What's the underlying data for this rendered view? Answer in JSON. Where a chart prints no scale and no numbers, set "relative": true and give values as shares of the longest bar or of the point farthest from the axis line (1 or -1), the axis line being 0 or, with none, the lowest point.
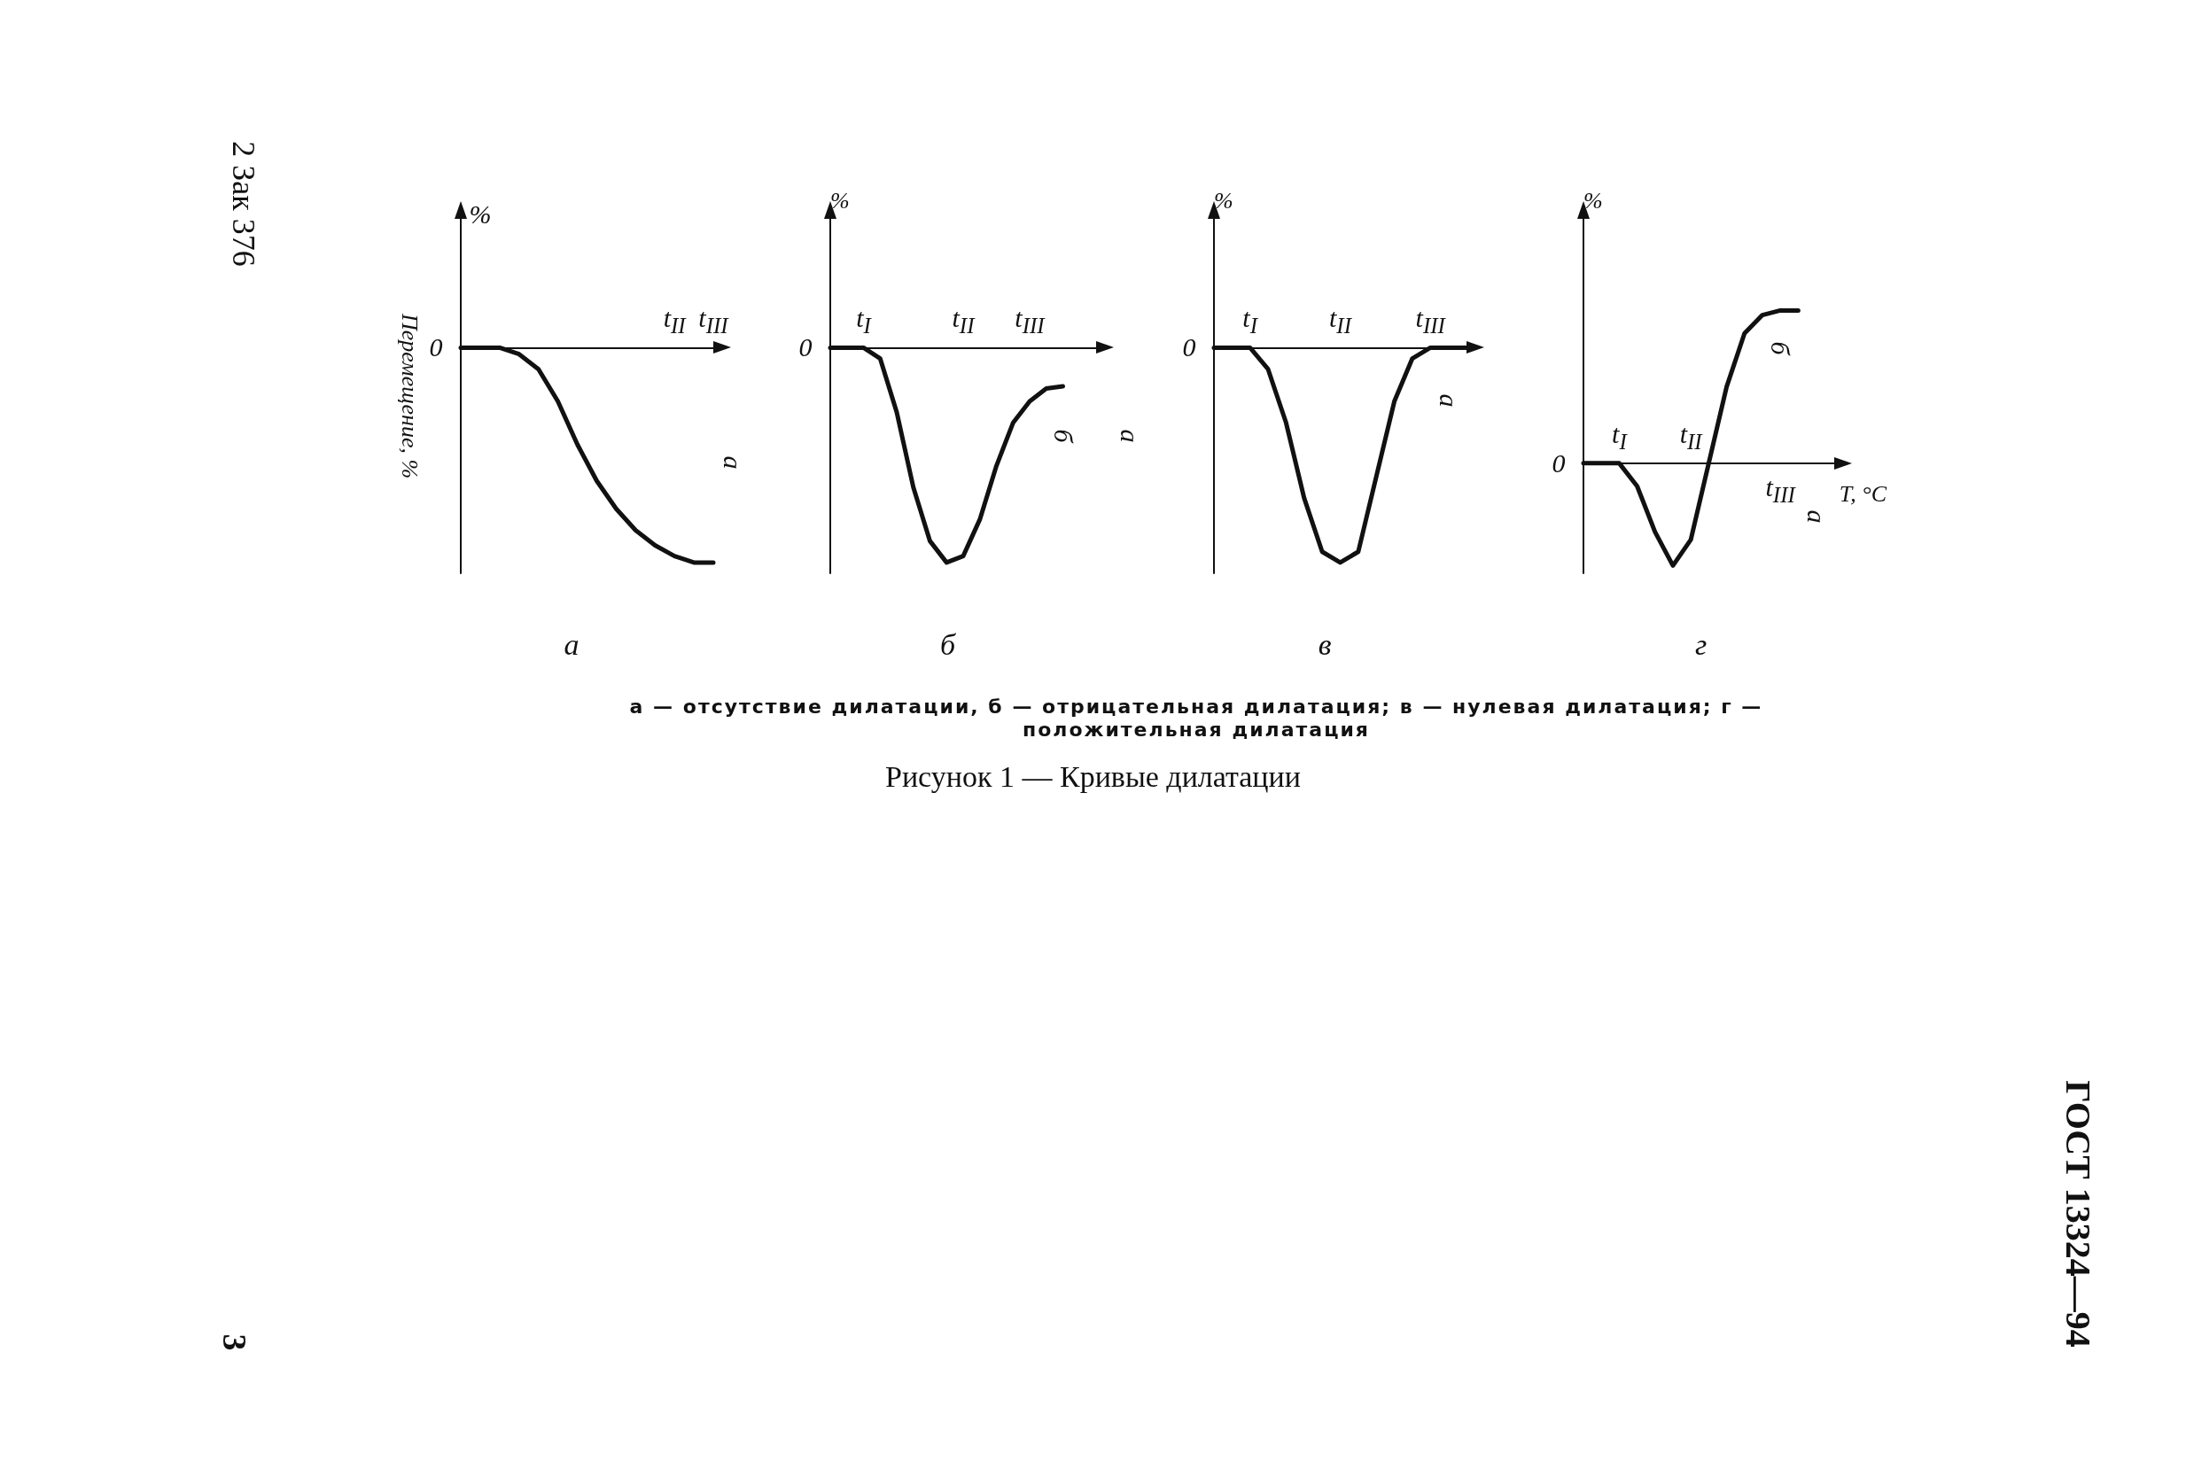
{
  "chart_data": [
    {
      "type": "line",
      "title": "а",
      "ylabel": "Перемещение, %",
      "relative": true,
      "marker": "none",
      "line_style": "solid",
      "color": "#111111",
      "categories": [
        null,
        null,
        null,
        null,
        null,
        null,
        null,
        null,
        null,
        null,
        null,
        null,
        null,
        null
      ],
      "values": [
        0,
        0,
        0,
        -0.03,
        -0.1,
        -0.25,
        -0.45,
        -0.62,
        -0.75,
        -0.85,
        -0.92,
        -0.97,
        -1,
        -1
      ],
      "annotations": [
        "%",
        "0",
        "t$_{II}$",
        "t$_{III}$",
        "а"
      ]
    },
    {
      "type": "line",
      "title": "б",
      "ylabel": "%",
      "relative": true,
      "marker": "none",
      "line_style": "solid",
      "color": "#111111",
      "categories": [
        null,
        null,
        null,
        null,
        null,
        null,
        null,
        null,
        null,
        null,
        null,
        null,
        null,
        null,
        null,
        null,
        null
      ],
      "values": [
        0,
        0,
        0,
        -0.05,
        -0.3,
        -0.65,
        -0.9,
        -1,
        -0.97,
        -0.8,
        -0.55,
        -0.35,
        -0.25,
        -0.19,
        -0.18,
        null,
        null
      ],
      "annotations": [
        "0",
        "t$_{I}$",
        "t$_{II}$",
        "t$_{III}$",
        "б",
        "а"
      ]
    },
    {
      "type": "line",
      "title": "в",
      "ylabel": "%",
      "relative": true,
      "marker": "none",
      "line_style": "solid",
      "color": "#111111",
      "categories": [
        null,
        null,
        null,
        null,
        null,
        null,
        null,
        null,
        null,
        null,
        null,
        null,
        null,
        null,
        null
      ],
      "values": [
        0,
        0,
        0,
        -0.1,
        -0.35,
        -0.7,
        -0.95,
        -1,
        -0.95,
        -0.6,
        -0.25,
        -0.05,
        0,
        0,
        0
      ],
      "annotations": [
        "0",
        "t$_{I}$",
        "t$_{II}$",
        "t$_{III}$",
        "а"
      ]
    },
    {
      "type": "line",
      "title": "г",
      "ylabel": "%",
      "xlabel": "T, °C",
      "relative": true,
      "marker": "none",
      "line_style": "solid",
      "color": "#111111",
      "categories": [
        null,
        null,
        null,
        null,
        null,
        null,
        null,
        null,
        null,
        null,
        null,
        null,
        null,
        null,
        null
      ],
      "values": [
        0,
        0,
        0,
        -0.15,
        -0.45,
        -0.67,
        -0.5,
        0,
        0.5,
        0.85,
        0.97,
        1,
        1,
        null,
        null
      ],
      "annotations": [
        "0",
        "t$_{I}$",
        "t$_{II}$",
        "t$_{III}$",
        "б",
        "а"
      ]
    },
    {
      "type": "other",
      "title": "Рисунок 1 — Кривые дилатации",
      "subtitle": "а — отсутствие дилатации, б — отрицательная дилатация; в — нулевая дилатация; г — положительная дилатация",
      "annotations": [
        "2 Зак 376",
        "3",
        "ГОСТ 13324—94"
      ]
    }
  ]
}
